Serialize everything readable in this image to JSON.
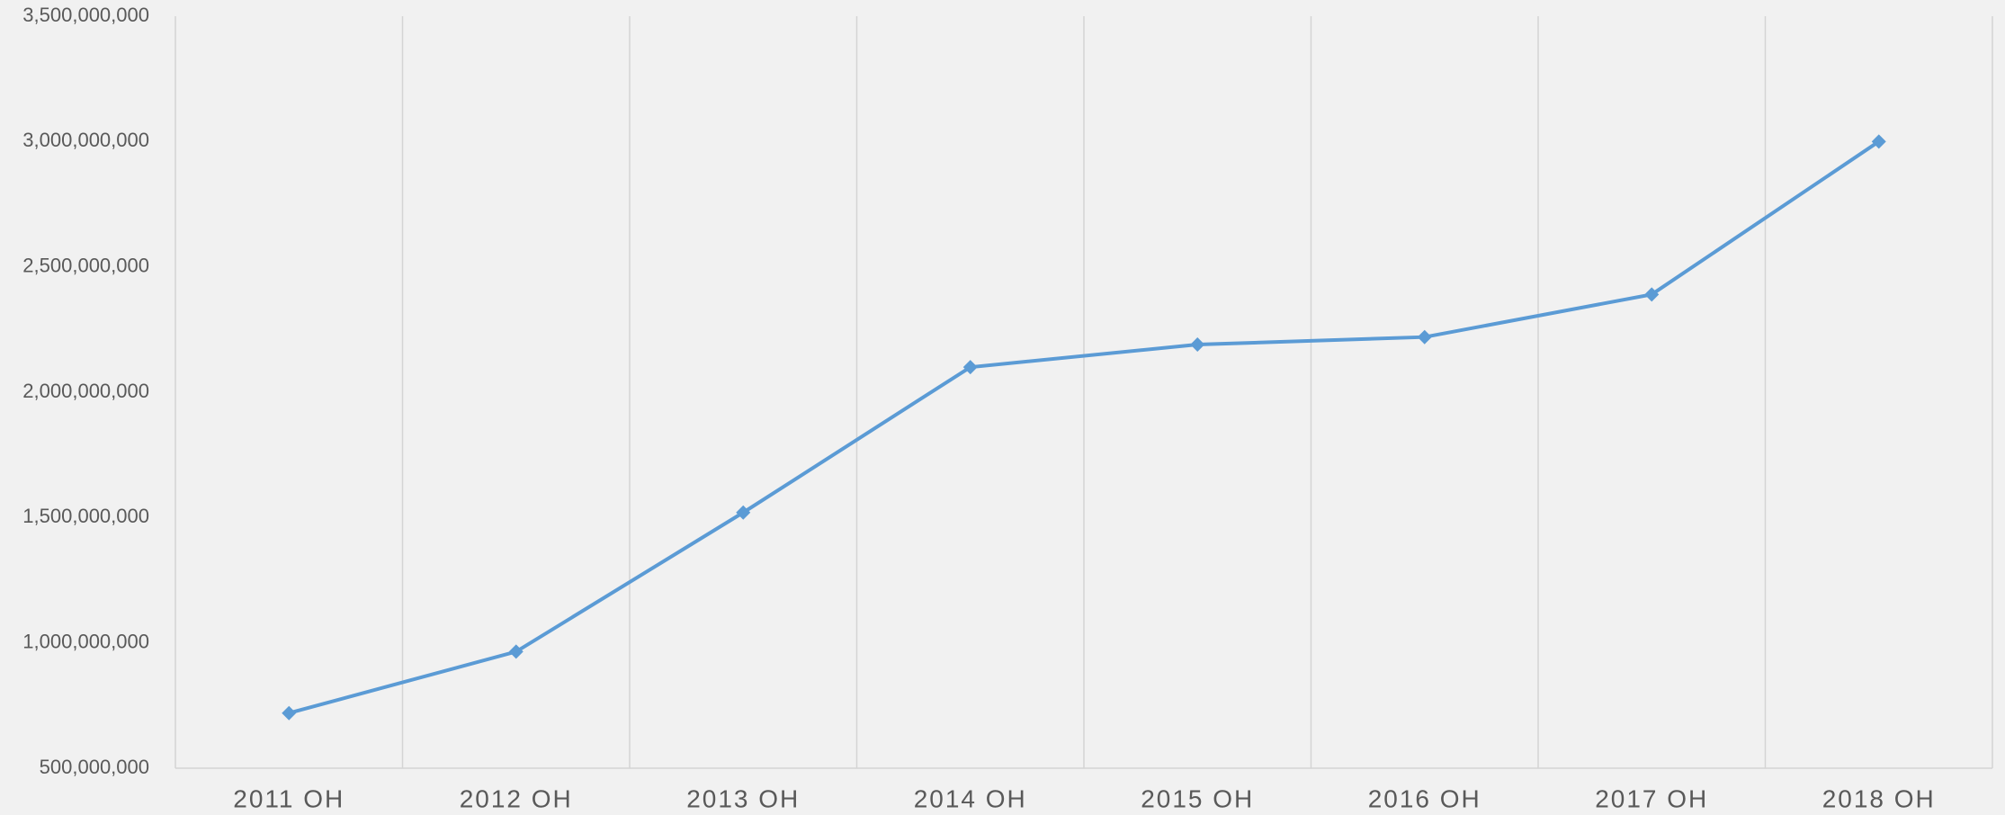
{
  "chart_data": {
    "type": "line",
    "categories": [
      "2011 OH",
      "2012 OH",
      "2013 OH",
      "2014 OH",
      "2015 OH",
      "2016 OH",
      "2017 OH",
      "2018 OH"
    ],
    "series": [
      {
        "color": "#5b9bd5",
        "values": [
          720000000,
          965000000,
          1520000000,
          2100000000,
          2190000000,
          2220000000,
          2390000000,
          3000000000
        ]
      }
    ],
    "ylim": [
      500000000,
      3500000000
    ],
    "yticks": [
      {
        "value": 500000000,
        "label": "500,000,000"
      },
      {
        "value": 1000000000,
        "label": "1,000,000,000"
      },
      {
        "value": 1500000000,
        "label": "1,500,000,000"
      },
      {
        "value": 2000000000,
        "label": "2,000,000,000"
      },
      {
        "value": 2500000000,
        "label": "2,500,000,000"
      },
      {
        "value": 3000000000,
        "label": "3,000,000,000"
      },
      {
        "value": 3500000000,
        "label": "3,500,000,000"
      }
    ],
    "marker": "diamond"
  }
}
